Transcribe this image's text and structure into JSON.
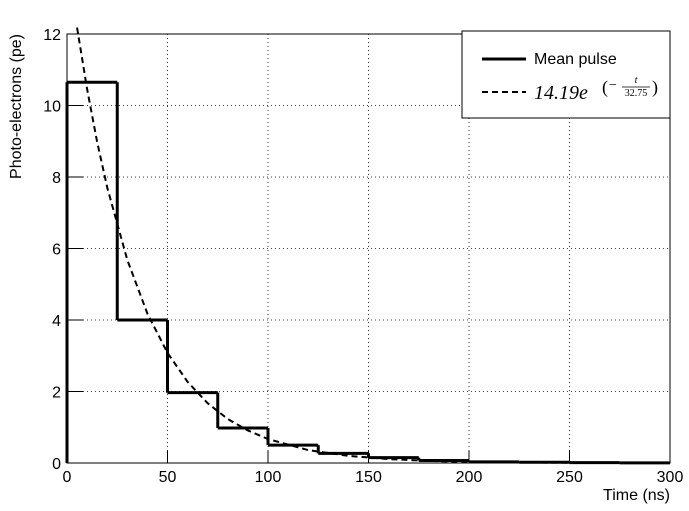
{
  "chart_data": {
    "type": "histogram",
    "x_label": "Time (ns)",
    "y_label": "Photo-electrons (pe)",
    "xlim": [
      0,
      300
    ],
    "ylim": [
      0,
      12
    ],
    "xticks": [
      0,
      50,
      100,
      150,
      200,
      250,
      300
    ],
    "yticks": [
      0,
      2,
      4,
      6,
      8,
      10,
      12
    ],
    "grid": true,
    "legend": "top-right",
    "series": [
      {
        "name": "Mean pulse",
        "color": "#000000",
        "style": "solid",
        "bins": [
          0,
          25,
          50,
          75,
          100,
          125,
          150,
          175,
          200,
          225,
          250,
          275,
          300
        ],
        "values": [
          10.65,
          4.0,
          1.97,
          0.98,
          0.5,
          0.27,
          0.15,
          0.07,
          0.03,
          0.02,
          0.01,
          0.005
        ]
      },
      {
        "name": "14.19e",
        "name_exponent": {
          "open": "(",
          "sign": "−",
          "numerator": "t",
          "denominator": "32.75",
          "close": ")"
        },
        "color": "#000000",
        "style": "dashed",
        "x": [
          5,
          10,
          15,
          20,
          30,
          40,
          50,
          60,
          70,
          80,
          90,
          100,
          120,
          140,
          160,
          180,
          200,
          250,
          300
        ],
        "values": [
          12.18,
          10.46,
          8.98,
          7.71,
          5.68,
          4.18,
          3.08,
          2.27,
          1.67,
          1.23,
          0.91,
          0.67,
          0.36,
          0.2,
          0.11,
          0.06,
          0.03,
          0.007,
          0.0015
        ]
      }
    ]
  }
}
